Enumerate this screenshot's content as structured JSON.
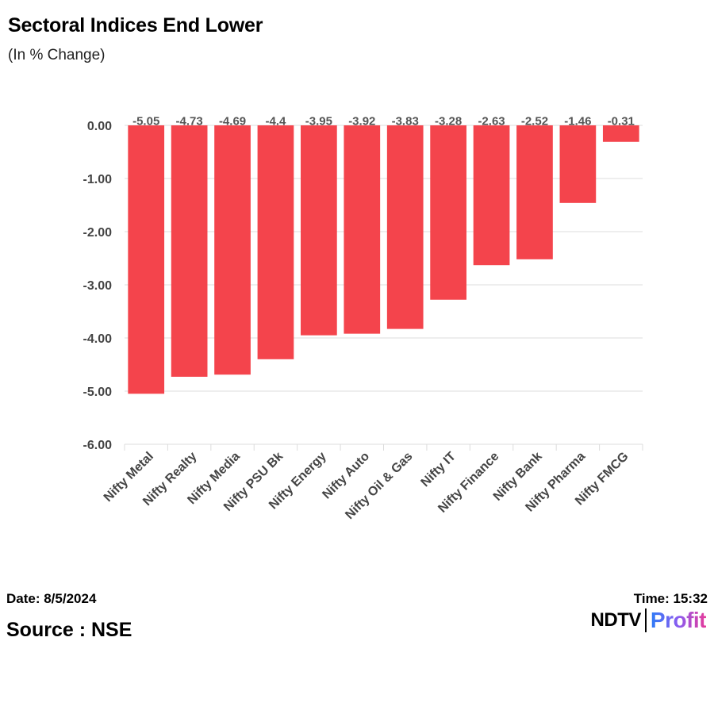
{
  "header": {
    "title": "Sectoral Indices End Lower",
    "subtitle": "(In % Change)"
  },
  "footer": {
    "date": "Date: 8/5/2024",
    "time": "Time: 15:32",
    "source": "Source : NSE",
    "logo_left": "NDTV",
    "logo_right": "Profit"
  },
  "colors": {
    "bar": "#f4444c",
    "grid": "#dcdcdc",
    "tick_text": "#444444",
    "label_text": "#555555"
  },
  "chart_data": {
    "type": "bar",
    "title": "Sectoral Indices End Lower",
    "subtitle": "(In % Change)",
    "xlabel": "",
    "ylabel": "",
    "categories": [
      "Nifty Metal",
      "Nifty Realty",
      "Nifty Media",
      "Nifty PSU Bk",
      "Nifty Energy",
      "Nifty Auto",
      "Nifty Oil & Gas",
      "Nifty IT",
      "Nifty Finance",
      "Nifty Bank",
      "Nifty Pharma",
      "Nifty FMCG"
    ],
    "values": [
      -5.05,
      -4.73,
      -4.69,
      -4.4,
      -3.95,
      -3.92,
      -3.83,
      -3.28,
      -2.63,
      -2.52,
      -1.46,
      -0.31
    ],
    "data_labels": [
      "-5.05",
      "-4.73",
      "-4.69",
      "-4.4",
      "-3.95",
      "-3.92",
      "-3.83",
      "-3.28",
      "-2.63",
      "-2.52",
      "-1.46",
      "-0.31"
    ],
    "ylim": [
      -6,
      0
    ],
    "yticks": [
      "0.00",
      "-1.00",
      "-2.00",
      "-3.00",
      "-4.00",
      "-5.00",
      "-6.00"
    ],
    "ytick_values": [
      0,
      -1,
      -2,
      -3,
      -4,
      -5,
      -6
    ],
    "grid": true,
    "legend": "none"
  }
}
